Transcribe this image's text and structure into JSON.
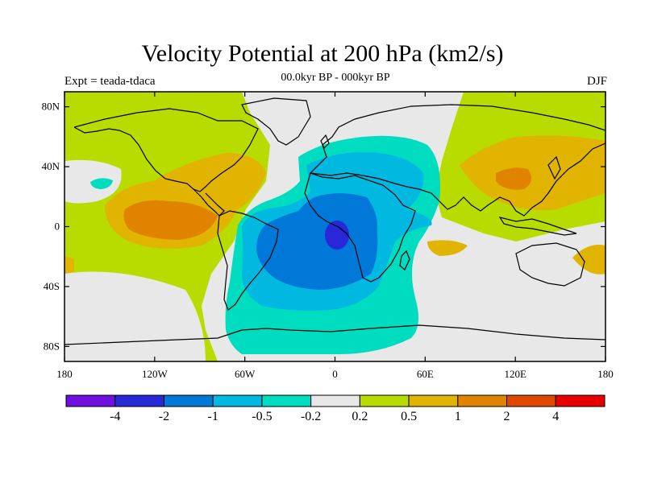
{
  "header": {
    "title": "Velocity Potential at 200 hPa (km2/s)",
    "subtitle": "00.0kyr BP - 000kyr BP",
    "left_label": "Expt = teada-tdaca",
    "right_label": "DJF"
  },
  "map": {
    "lon_range": [
      -180,
      180
    ],
    "lat_range": [
      -90,
      90
    ],
    "lat_ticks": [
      {
        "value": 80,
        "label": "80N"
      },
      {
        "value": 40,
        "label": "40N"
      },
      {
        "value": 0,
        "label": "0"
      },
      {
        "value": -40,
        "label": "40S"
      },
      {
        "value": -80,
        "label": "80S"
      }
    ],
    "lon_ticks": [
      {
        "value": -180,
        "label": "180"
      },
      {
        "value": -120,
        "label": "120W"
      },
      {
        "value": -60,
        "label": "60W"
      },
      {
        "value": 0,
        "label": "0"
      },
      {
        "value": 60,
        "label": "60E"
      },
      {
        "value": 120,
        "label": "120E"
      },
      {
        "value": 180,
        "label": "180"
      }
    ]
  },
  "colorbar": {
    "colors": [
      "#7010e0",
      "#2828d8",
      "#0078d8",
      "#00b8e0",
      "#00dcc0",
      "#e8e8e8",
      "#b8dc00",
      "#e0b400",
      "#e08400",
      "#e04800",
      "#e80000"
    ],
    "labels": [
      "-4",
      "-2",
      "-1",
      "-0.5",
      "-0.2",
      "0.2",
      "0.5",
      "1",
      "2",
      "4"
    ]
  }
}
